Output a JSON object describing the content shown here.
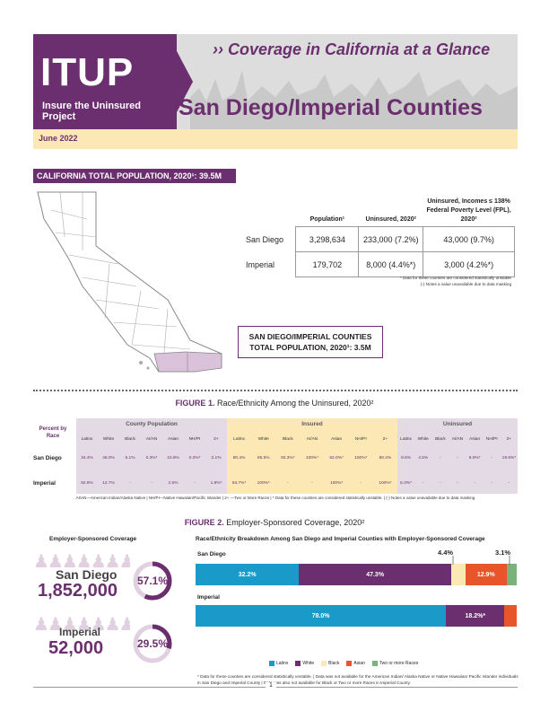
{
  "header": {
    "logo_text": "ITUP",
    "logo_sub": "Insure the Uninsured Project",
    "subtitle": "›› Coverage in California at a Glance",
    "title": "San Diego/Imperial Counties",
    "date": "June 2022"
  },
  "ca_population": {
    "label": "CALIFORNIA TOTAL POPULATION, 2020¹: 39.5M"
  },
  "pop_table": {
    "headers": [
      "Population¹",
      "Uninsured, 2020²",
      "Uninsured, Incomes ≤ 138% Federal Poverty Level (FPL), 2020²"
    ],
    "rows": [
      {
        "county": "San Diego",
        "population": "3,298,634",
        "uninsured": "233,000 (7.2%)",
        "uninsured_fpl": "43,000 (9.7%)"
      },
      {
        "county": "Imperial",
        "population": "179,702",
        "uninsured": "8,000 (4.4%*)",
        "uninsured_fpl": "3,000 (4.2%*)"
      }
    ],
    "note1": "* Data for these counties are considered statistically unstable",
    "note2": "(-) Notes a value unavailable due to data masking"
  },
  "sdi_total": {
    "line1": "SAN DIEGO/IMPERIAL COUNTIES",
    "line2": "TOTAL POPULATION, 2020¹: 3.5M"
  },
  "figure1": {
    "num": "FIGURE 1.",
    "title": " Race/Ethnicity Among the Uninsured, 2020²",
    "pct_label": "Percent by Race",
    "groups": [
      "County Population",
      "Insured",
      "Uninsured"
    ],
    "columns": [
      "Latinx",
      "White",
      "Black",
      "AI/AN",
      "Asian",
      "NH/PI",
      "2+"
    ],
    "rows": [
      {
        "county": "San Diego",
        "county_pop": [
          "34.4%",
          "46.0%",
          "5.1%",
          "0.3%*",
          "10.8%",
          "0.2%*",
          "3.1%"
        ],
        "insured": [
          "90.4%",
          "95.5%",
          "93.3%*",
          "100%*",
          "92.0%*",
          "100%*",
          "80.4%"
        ],
        "uninsured": [
          "9.6%",
          "4.5%",
          "-",
          "-",
          "8.0%*",
          "-",
          "19.6%*"
        ]
      },
      {
        "county": "Imperial",
        "county_pop": [
          "82.8%",
          "12.7%",
          "-",
          "-",
          "2.5%",
          "-",
          "1.9%*"
        ],
        "insured": [
          "94.7%*",
          "100%*",
          "-",
          "-",
          "100%*",
          "-",
          "100%*"
        ],
        "uninsured": [
          "5.3%*",
          "-",
          "-",
          "-",
          "-",
          "-",
          "-"
        ]
      }
    ],
    "note": "AI/AN—American Indian/Alaska Native | NH/PI—Native Hawaiian/Pacific Islander | 2+ —Two or More Races | * Data for these counties are considered statistically unstable. | (-) Notes a value unavailable due to data masking"
  },
  "figure2": {
    "num": "FIGURE 2.",
    "title": " Employer-Sponsored Coverage, 2020²",
    "esc_label": "Employer-Sponsored Coverage",
    "breakdown_label": "Race/Ethnicity Breakdown Among San Diego and Imperial Counties with Employer-Sponsored Coverage",
    "san_diego": {
      "name": "San Diego",
      "number": "1,852,000",
      "pct": "57.1%",
      "pct_value": 57.1
    },
    "imperial": {
      "name": "Imperial",
      "number": "52,000",
      "pct": "29.5%",
      "pct_value": 29.5
    },
    "legend": [
      "Latinx",
      "White",
      "Black",
      "Asian",
      "Two or more Races"
    ],
    "colors": {
      "latinx": "#1a9ac9",
      "white": "#6b2e6e",
      "black": "#fbe8b5",
      "asian": "#e8552a",
      "two_plus": "#7ab37a"
    },
    "note": "* Data for these counties are considered statistically unstable. | Data was not available for the American Indian/ Alaska Native or Native Hawaiian/ Pacific Islander individuals in San Diego and Imperial County | Data was also not available for Black or Two or more Races in Imperial County."
  },
  "chart_data": {
    "type": "bar",
    "categories": [
      "San Diego",
      "Imperial"
    ],
    "series": [
      {
        "name": "Latinx",
        "values": [
          32.2,
          78.0
        ],
        "labels": [
          "32.2%",
          "78.0%"
        ]
      },
      {
        "name": "White",
        "values": [
          47.3,
          18.2
        ],
        "labels": [
          "47.3%",
          "18.2%*"
        ]
      },
      {
        "name": "Black",
        "values": [
          4.4,
          0
        ],
        "labels": [
          "4.4%",
          ""
        ]
      },
      {
        "name": "Asian",
        "values": [
          12.9,
          3.8
        ],
        "labels": [
          "12.9%",
          ""
        ]
      },
      {
        "name": "Two or more Races",
        "values": [
          3.1,
          0
        ],
        "labels": [
          "3.1%",
          ""
        ]
      }
    ],
    "stacked": true
  },
  "page": "1"
}
